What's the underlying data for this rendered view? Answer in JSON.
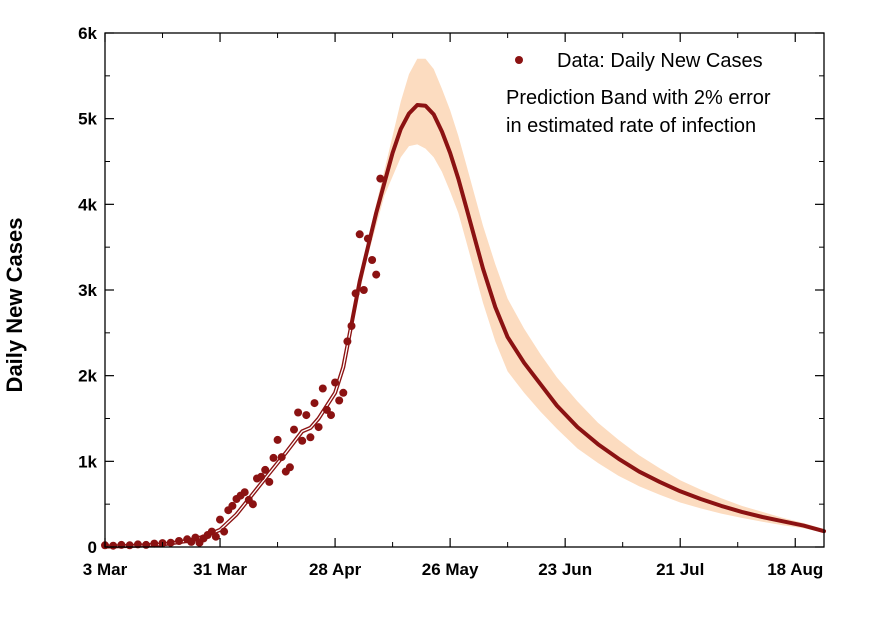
{
  "colors": {
    "data": "#8b1212",
    "band": "#fcdcc0",
    "axis": "#000000",
    "background": "#ffffff"
  },
  "chart_data": {
    "type": "line",
    "title": "",
    "xlabel": "",
    "ylabel": "Daily New Cases",
    "x_units": "days since 3 Mar",
    "xlim": [
      0,
      175
    ],
    "ylim": [
      0,
      6000
    ],
    "x_ticks": [
      {
        "value": 0,
        "label": "3 Mar"
      },
      {
        "value": 28,
        "label": "31 Mar"
      },
      {
        "value": 56,
        "label": "28 Apr"
      },
      {
        "value": 84,
        "label": "26 May"
      },
      {
        "value": 112,
        "label": "23 Jun"
      },
      {
        "value": 140,
        "label": "21 Jul"
      },
      {
        "value": 168,
        "label": "18 Aug"
      }
    ],
    "y_ticks": [
      {
        "value": 0,
        "label": "0"
      },
      {
        "value": 1000,
        "label": "1k"
      },
      {
        "value": 2000,
        "label": "2k"
      },
      {
        "value": 3000,
        "label": "3k"
      },
      {
        "value": 4000,
        "label": "4k"
      },
      {
        "value": 5000,
        "label": "5k"
      },
      {
        "value": 6000,
        "label": "6k"
      }
    ],
    "legend": {
      "position": "top-right",
      "data_label": "Data: Daily New Cases",
      "band_label_line1": "Prediction Band with 2% error",
      "band_label_line2": "in estimated rate of infection"
    },
    "series": [
      {
        "name": "Prediction (central)",
        "kind": "line",
        "x": [
          0,
          8,
          14,
          20,
          24,
          28,
          32,
          36,
          40,
          44,
          48,
          50,
          52,
          54,
          56,
          58,
          60,
          62,
          64,
          66,
          68,
          70,
          72,
          74,
          76,
          78,
          80,
          82,
          84,
          86,
          88,
          90,
          92,
          95,
          98,
          102,
          106,
          110,
          115,
          120,
          125,
          130,
          135,
          140,
          145,
          150,
          155,
          160,
          165,
          170,
          175
        ],
        "y": [
          5,
          15,
          30,
          70,
          120,
          200,
          380,
          620,
          860,
          1100,
          1350,
          1390,
          1500,
          1650,
          1800,
          2100,
          2600,
          3100,
          3500,
          3900,
          4250,
          4600,
          4880,
          5060,
          5160,
          5150,
          5050,
          4850,
          4600,
          4300,
          3950,
          3600,
          3250,
          2800,
          2450,
          2150,
          1900,
          1650,
          1400,
          1200,
          1030,
          880,
          760,
          650,
          560,
          480,
          410,
          350,
          300,
          250,
          185
        ]
      },
      {
        "name": "Prediction band upper",
        "kind": "band-upper",
        "x": [
          50,
          56,
          60,
          64,
          68,
          72,
          74,
          76,
          78,
          80,
          82,
          84,
          86,
          88,
          90,
          92,
          95,
          98,
          102,
          106,
          110,
          115,
          120,
          125,
          130,
          135,
          140,
          145,
          150,
          155,
          160,
          165,
          170,
          175
        ],
        "y": [
          1390,
          1800,
          2650,
          3600,
          4400,
          5200,
          5520,
          5700,
          5700,
          5580,
          5350,
          5100,
          4800,
          4450,
          4100,
          3750,
          3300,
          2900,
          2550,
          2250,
          1980,
          1700,
          1450,
          1250,
          1070,
          920,
          780,
          670,
          570,
          480,
          410,
          340,
          280,
          210
        ]
      },
      {
        "name": "Prediction band lower",
        "kind": "band-lower",
        "x": [
          50,
          56,
          60,
          64,
          68,
          72,
          74,
          76,
          78,
          80,
          82,
          84,
          86,
          88,
          90,
          92,
          95,
          98,
          102,
          106,
          110,
          115,
          120,
          125,
          130,
          135,
          140,
          145,
          150,
          155,
          160,
          165,
          170,
          175
        ],
        "y": [
          1390,
          1800,
          2550,
          3400,
          4100,
          4550,
          4680,
          4700,
          4650,
          4550,
          4380,
          4150,
          3900,
          3550,
          3200,
          2850,
          2400,
          2050,
          1800,
          1580,
          1380,
          1150,
          980,
          830,
          710,
          610,
          520,
          450,
          390,
          340,
          295,
          255,
          220,
          165
        ]
      },
      {
        "name": "Data: Daily New Cases",
        "kind": "scatter",
        "x": [
          0,
          2,
          4,
          6,
          8,
          10,
          12,
          14,
          16,
          18,
          20,
          21,
          22,
          23,
          24,
          25,
          26,
          27,
          28,
          29,
          30,
          31,
          32,
          33,
          34,
          35,
          36,
          37,
          38,
          39,
          40,
          41,
          42,
          43,
          44,
          45,
          46,
          47,
          48,
          49,
          50,
          51,
          52,
          53,
          54,
          55,
          56,
          57,
          58,
          59,
          60,
          61,
          62,
          63,
          64,
          65,
          66,
          67
        ],
        "y": [
          20,
          15,
          25,
          20,
          30,
          25,
          40,
          45,
          50,
          70,
          90,
          60,
          110,
          50,
          100,
          140,
          180,
          120,
          320,
          180,
          430,
          480,
          560,
          600,
          640,
          550,
          500,
          800,
          820,
          900,
          760,
          1040,
          1250,
          1050,
          880,
          930,
          1370,
          1570,
          1240,
          1540,
          1280,
          1680,
          1400,
          1850,
          1600,
          1540,
          1920,
          1710,
          1800,
          2400,
          2580,
          2960,
          3650,
          3000,
          3600,
          3350,
          3180,
          4300
        ]
      }
    ]
  }
}
